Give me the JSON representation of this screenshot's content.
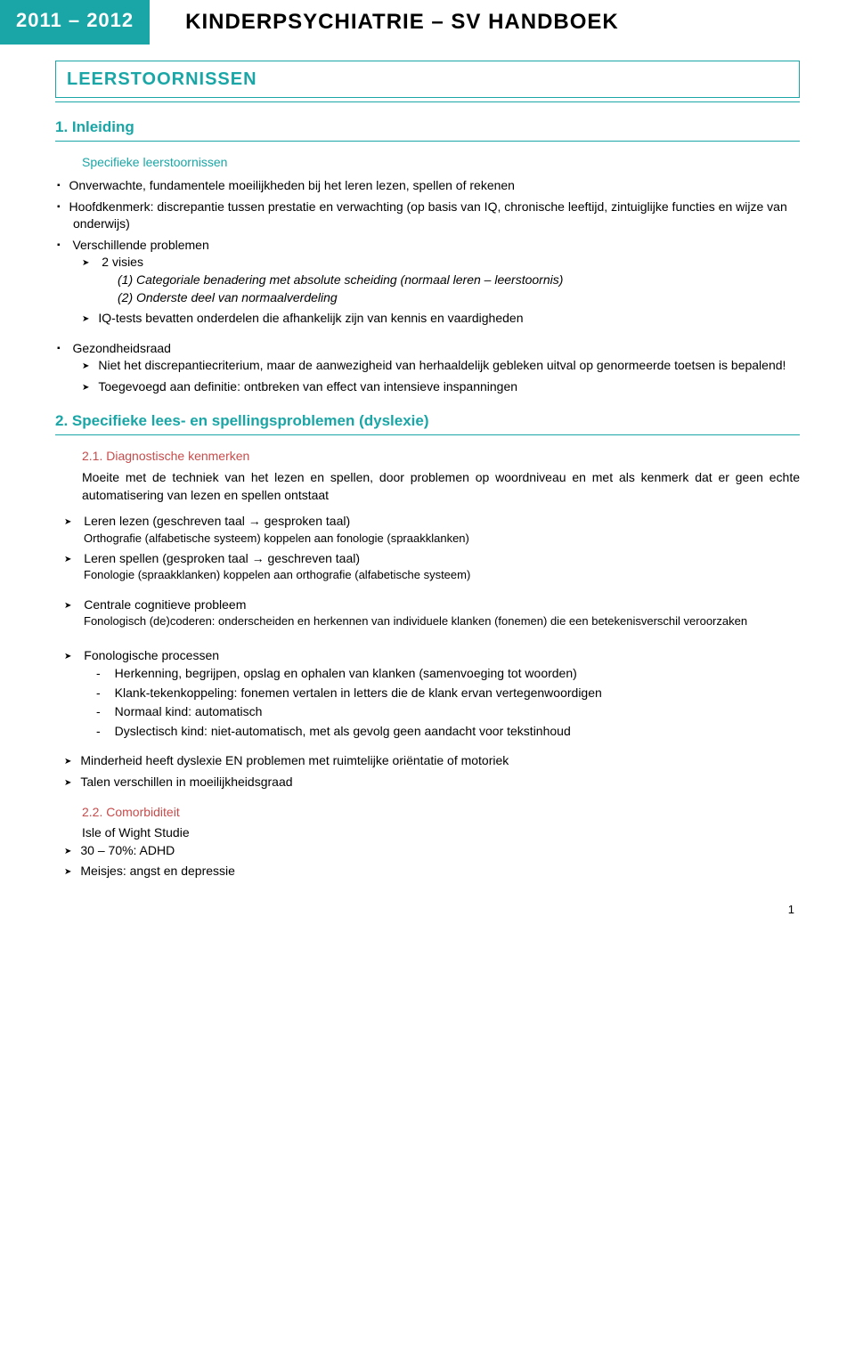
{
  "header": {
    "year_badge": "2011 – 2012",
    "title": "KINDERPSYCHIATRIE – SV HANDBOEK"
  },
  "section_title": "LEERSTOORNISSEN",
  "s1": {
    "heading": "1. Inleiding",
    "sub1_title": "Specifieke leerstoornissen",
    "b1": "Onverwachte, fundamentele moeilijkheden bij het leren lezen, spellen of rekenen",
    "b2": "Hoofdkenmerk: discrepantie tussen prestatie en verwachting (op basis van IQ, chronische leeftijd, zintuiglijke functies en wijze van onderwijs)",
    "b3": "Verschillende problemen",
    "b3_a": "2 visies",
    "b3_a_i1": "(1) Categoriale benadering met absolute scheiding (normaal leren – leerstoornis)",
    "b3_a_i2": "(2) Onderste deel van normaalverdeling",
    "b3_b": "IQ-tests bevatten onderdelen die afhankelijk zijn van kennis en vaardigheden",
    "b4": "Gezondheidsraad",
    "b4_a": "Niet het discrepantiecriterium, maar de aanwezigheid van herhaaldelijk gebleken uitval op genormeerde toetsen is bepalend!",
    "b4_b": "Toegevoegd aan definitie: ontbreken van effect van intensieve inspanningen"
  },
  "s2": {
    "heading": "2. Specifieke lees- en spellingsproblemen (dyslexie)",
    "s21": {
      "heading": "2.1. Diagnostische kenmerken",
      "intro": "Moeite met de techniek van het lezen en spellen, door problemen op woordniveau en met als kenmerk dat er geen echte automatisering van lezen en spellen ontstaat",
      "a1": "Leren lezen (geschreven taal → gesproken taal)",
      "a1_note": "Orthografie (alfabetische systeem) koppelen aan fonologie (spraakklanken)",
      "a2": "Leren spellen (gesproken taal → geschreven taal)",
      "a2_note": "Fonologie (spraakklanken) koppelen aan orthografie (alfabetische systeem)",
      "a3": "Centrale cognitieve probleem",
      "a3_note": "Fonologisch (de)coderen: onderscheiden en herkennen van individuele klanken (fonemen) die een betekenisverschil veroorzaken",
      "a4": "Fonologische processen",
      "a4_d1": "Herkenning, begrijpen, opslag en ophalen van klanken (samenvoeging tot woorden)",
      "a4_d2": "Klank-tekenkoppeling: fonemen vertalen in letters die de klank ervan vertegenwoordigen",
      "a4_d3": "Normaal kind: automatisch",
      "a4_d4": "Dyslectisch kind: niet-automatisch, met als gevolg geen aandacht voor tekstinhoud",
      "a5": "Minderheid heeft dyslexie EN problemen met ruimtelijke oriëntatie of motoriek",
      "a6": "Talen verschillen in moeilijkheidsgraad"
    },
    "s22": {
      "heading": "2.2. Comorbiditeit",
      "intro": "Isle of Wight Studie",
      "a1": "30 – 70%: ADHD",
      "a2": "Meisjes: angst en depressie"
    }
  },
  "page_number": "1"
}
